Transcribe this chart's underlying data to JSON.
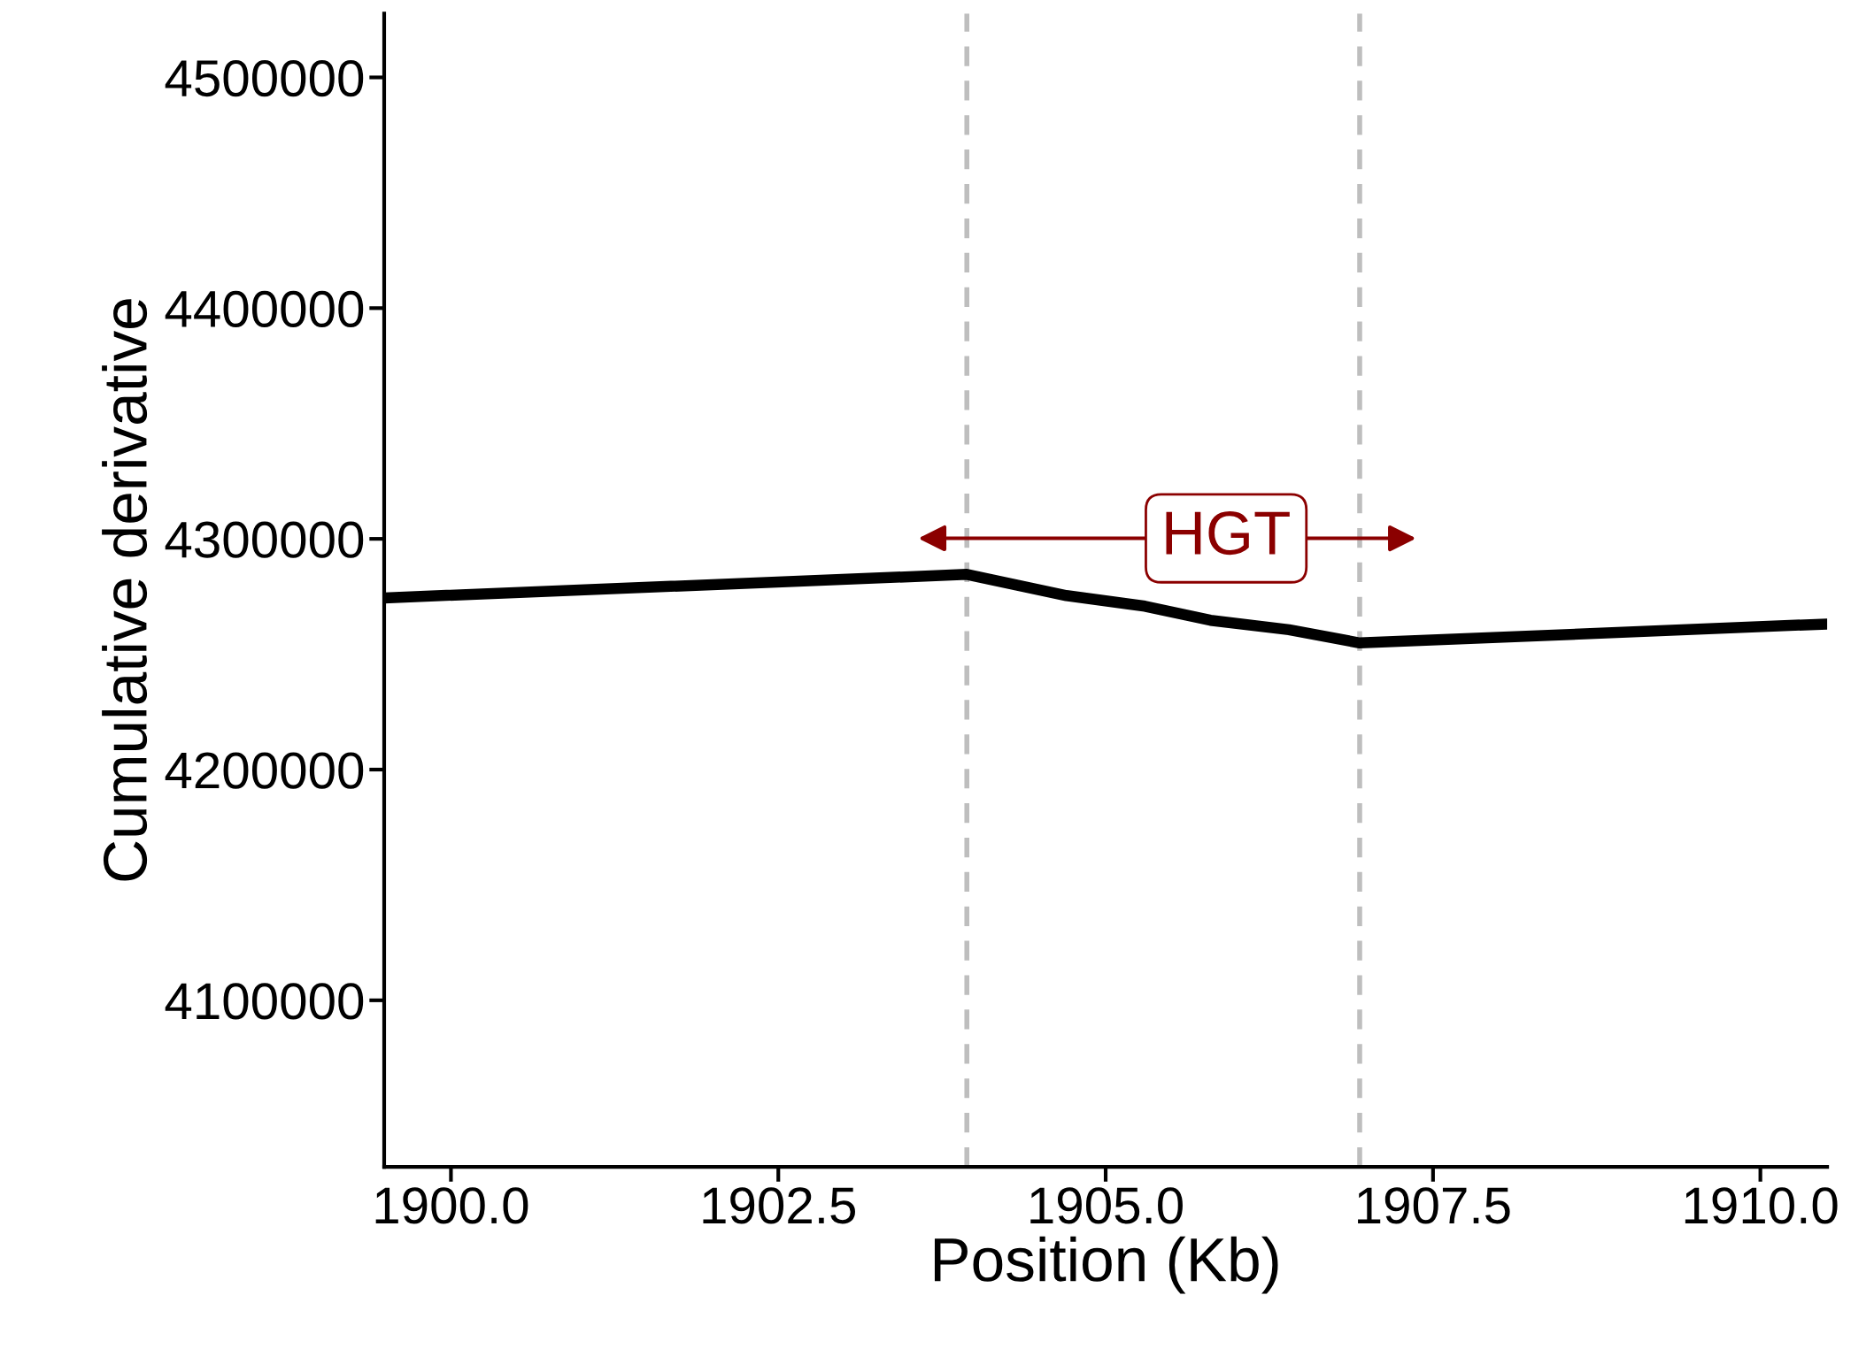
{
  "chart_data": {
    "type": "line",
    "xlabel": "Position (Kb)",
    "ylabel": "Cumulative derivative",
    "x": [
      1899.49,
      1903.94,
      1904.7,
      1905.3,
      1905.8,
      1906.4,
      1906.94,
      1910.51
    ],
    "series": [
      {
        "color": "#000000",
        "values": [
          4274400,
          4284600,
          4275400,
          4270800,
          4264700,
          4260600,
          4254900,
          4263100
        ]
      }
    ],
    "xlim": [
      1899.49,
      1910.51
    ],
    "xticks": [
      {
        "value": 1900,
        "label": "1900.0"
      },
      1902.5,
      {
        "value": 1905,
        "label": "1905.0"
      },
      1907.5,
      {
        "value": 1910,
        "label": "1910.0"
      }
    ],
    "ylim": [
      4027800,
      4527700
    ],
    "yticks": [
      4100000,
      4200000,
      4300000,
      4400000,
      4500000
    ],
    "ref_lines": [
      {
        "axis": "x",
        "value": 1903.94,
        "color": "#bebebe",
        "line_style": "dashed"
      },
      {
        "axis": "x",
        "value": 1906.94,
        "color": "#bebebe",
        "line_style": "dashed"
      }
    ],
    "annotations": [
      "HGT"
    ],
    "grid": false,
    "marker": "none",
    "line_style": "solid"
  }
}
